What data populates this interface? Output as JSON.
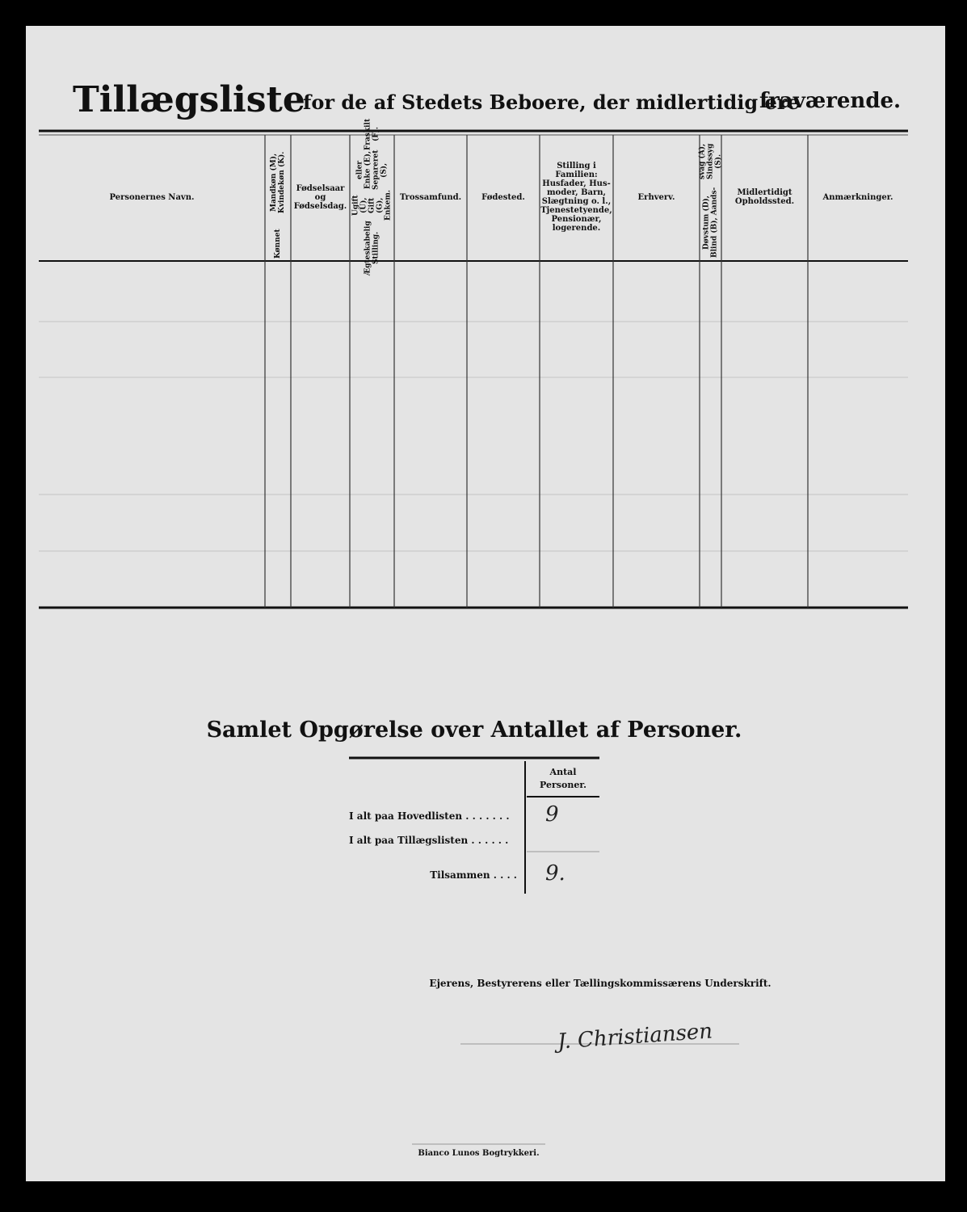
{
  "header": {
    "title": "Tillægsliste",
    "subtitle": "for de af Stedets Beboere, der midlertidig ere",
    "subtitle_emphasis": "fraværende."
  },
  "table": {
    "columns": [
      [
        "Personernes Navn."
      ],
      [
        "Kønnet",
        "Mandkøn (M), Kvindekøn (K)."
      ],
      [
        "Fødselsaar",
        "og",
        "Fødselsdag."
      ],
      [
        "Ægteskabelig Stilling.",
        "Ugift (U), Gift (G), Enkem.",
        "eller Enke (E), Separeret (S),",
        "Fraskilt (F)."
      ],
      [
        "Trossamfund."
      ],
      [
        "Fødested."
      ],
      [
        "Stilling i",
        "Familien:",
        "Husfader, Hus-",
        "moder, Barn,",
        "Slægtning o. l.,",
        "Tjenestetyende,",
        "Pensionær,",
        "logerende."
      ],
      [
        "Erhverv."
      ],
      [
        "Døvstum (D), Blind (B), Aands-",
        "svag (A), Sindssyg (S)."
      ],
      [
        "Midlertidigt",
        "Opholdssted."
      ],
      [
        "Anmærkninger."
      ]
    ]
  },
  "summary": {
    "title": "Samlet Opgørelse over Antallet af Personer.",
    "column_header": [
      "Antal",
      "Personer."
    ],
    "rows": [
      {
        "label": "I alt paa Hovedlisten . . . . . . .",
        "value": "9"
      },
      {
        "label": "I alt paa Tillægslisten . . . . . .",
        "value": null
      },
      {
        "label": "Tilsammen . . . .",
        "value": "9."
      }
    ]
  },
  "signature": {
    "caption": "Ejerens, Bestyrerens eller Tællingskommissærens Underskrift.",
    "name": "J. Christiansen"
  },
  "footer": {
    "printer": "Bianco Lunos Bogtrykkeri."
  }
}
